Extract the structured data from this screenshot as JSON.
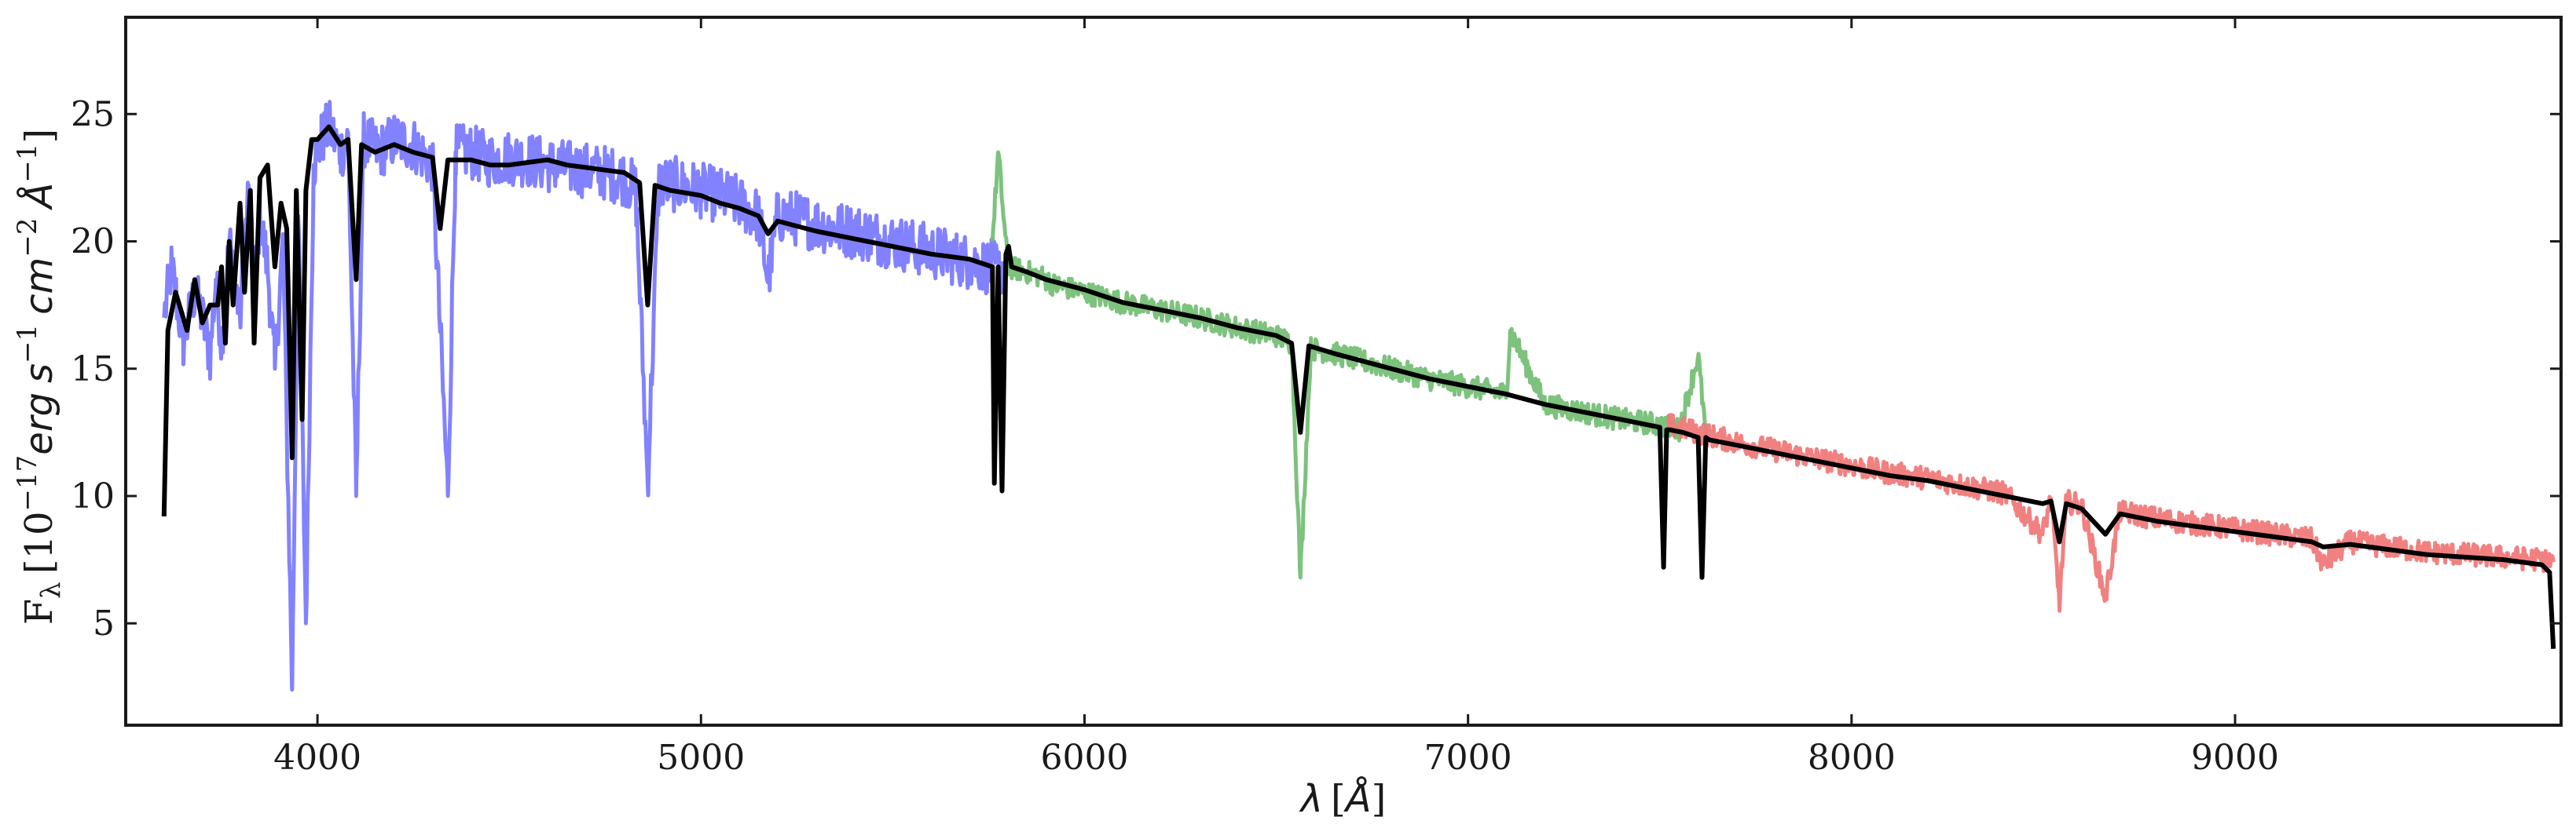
{
  "chart_data": {
    "type": "line",
    "title": "",
    "xlabel": {
      "symbol": "λ",
      "unit": "Å"
    },
    "ylabel": {
      "prefix": "F",
      "subscript": "λ",
      "scale_base": "10",
      "scale_exp": "−17",
      "unit_erg": "erg",
      "unit_s": "s",
      "unit_s_exp": "−1",
      "unit_cm": "cm",
      "unit_cm_exp": "−2",
      "unit_A": "Å",
      "unit_A_exp": "−1"
    },
    "xlim": [
      3500,
      9850
    ],
    "ylim": [
      1,
      28.8
    ],
    "xticks": [
      4000,
      5000,
      6000,
      7000,
      8000,
      9000
    ],
    "yticks": [
      5,
      10,
      15,
      20,
      25
    ],
    "grid": false,
    "legend": "none",
    "series": [
      {
        "color": "#7b7bff",
        "range": [
          3600,
          5790
        ],
        "x": [
          3600,
          3620,
          3650,
          3680,
          3700,
          3720,
          3735,
          3750,
          3770,
          3798,
          3820,
          3835,
          3850,
          3870,
          3889,
          3910,
          3934,
          3950,
          3970,
          3990,
          4010,
          4030,
          4060,
          4080,
          4101,
          4120,
          4160,
          4200,
          4250,
          4300,
          4340,
          4360,
          4400,
          4450,
          4500,
          4550,
          4600,
          4650,
          4700,
          4750,
          4800,
          4830,
          4861,
          4890,
          4950,
          5000,
          5050,
          5100,
          5150,
          5175,
          5200,
          5250,
          5300,
          5350,
          5400,
          5450,
          5500,
          5550,
          5600,
          5650,
          5700,
          5750,
          5790
        ],
        "y": [
          17.0,
          19.0,
          16.0,
          18.0,
          17.0,
          15.5,
          18.5,
          16.0,
          20.0,
          17.0,
          22.0,
          18.0,
          21.0,
          19.0,
          15.0,
          20.0,
          2.5,
          21.0,
          5.0,
          23.0,
          24.0,
          24.5,
          23.5,
          24.0,
          10.0,
          24.0,
          23.5,
          24.0,
          23.8,
          23.0,
          10.0,
          23.5,
          23.5,
          23.2,
          23.3,
          23.2,
          23.0,
          22.9,
          22.8,
          22.7,
          22.5,
          22.0,
          10.5,
          22.3,
          22.2,
          22.0,
          21.8,
          21.5,
          21.0,
          18.5,
          21.0,
          20.9,
          20.7,
          20.5,
          20.4,
          20.2,
          20.0,
          19.8,
          19.6,
          19.4,
          19.2,
          19.0,
          18.9
        ]
      },
      {
        "color": "#76bf76",
        "range": [
          5760,
          7620
        ],
        "x": [
          5760,
          5775,
          5800,
          5850,
          5890,
          5920,
          6000,
          6100,
          6200,
          6300,
          6400,
          6500,
          6540,
          6563,
          6590,
          6650,
          6700,
          6800,
          6900,
          7000,
          7100,
          7110,
          7200,
          7300,
          7400,
          7500,
          7550,
          7600,
          7620
        ],
        "y": [
          20.0,
          23.5,
          19.0,
          18.8,
          18.6,
          18.3,
          18.0,
          17.6,
          17.3,
          17.0,
          16.6,
          16.3,
          16.0,
          6.8,
          15.8,
          15.6,
          15.4,
          15.0,
          14.6,
          14.3,
          14.0,
          16.5,
          13.6,
          13.3,
          13.0,
          12.8,
          12.6,
          15.5,
          12.4
        ]
      },
      {
        "color": "#f07a7a",
        "range": [
          7520,
          9830
        ],
        "x": [
          7520,
          7600,
          7700,
          7800,
          7900,
          8000,
          8100,
          8200,
          8300,
          8400,
          8498,
          8520,
          8542,
          8560,
          8600,
          8662,
          8700,
          8800,
          8900,
          9000,
          9100,
          9200,
          9230,
          9300,
          9400,
          9500,
          9600,
          9700,
          9800,
          9830
        ],
        "y": [
          12.8,
          12.5,
          12.1,
          11.8,
          11.5,
          11.2,
          10.9,
          10.7,
          10.4,
          10.1,
          8.5,
          9.9,
          5.8,
          9.8,
          9.6,
          6.0,
          9.4,
          9.1,
          8.9,
          8.7,
          8.5,
          8.3,
          7.3,
          8.2,
          8.0,
          7.8,
          7.7,
          7.6,
          7.5,
          7.4
        ]
      },
      {
        "color": "#000000",
        "range": [
          3600,
          9830
        ],
        "x": [
          3600,
          3610,
          3630,
          3660,
          3680,
          3700,
          3720,
          3740,
          3750,
          3760,
          3770,
          3780,
          3798,
          3810,
          3825,
          3835,
          3850,
          3870,
          3889,
          3905,
          3920,
          3934,
          3945,
          3960,
          3970,
          3985,
          4000,
          4030,
          4060,
          4080,
          4101,
          4115,
          4150,
          4200,
          4250,
          4300,
          4320,
          4340,
          4360,
          4400,
          4450,
          4500,
          4550,
          4600,
          4650,
          4700,
          4750,
          4800,
          4840,
          4861,
          4880,
          4920,
          5000,
          5050,
          5100,
          5150,
          5175,
          5200,
          5250,
          5300,
          5400,
          5500,
          5600,
          5700,
          5760,
          5765,
          5775,
          5785,
          5795,
          5802,
          5810,
          5850,
          5900,
          6000,
          6100,
          6200,
          6300,
          6400,
          6500,
          6540,
          6563,
          6585,
          6650,
          6700,
          6800,
          6900,
          7000,
          7100,
          7200,
          7300,
          7400,
          7500,
          7510,
          7518,
          7525,
          7560,
          7600,
          7610,
          7620,
          7630,
          7700,
          7800,
          7900,
          8000,
          8100,
          8200,
          8300,
          8400,
          8498,
          8520,
          8542,
          8560,
          8600,
          8662,
          8700,
          8800,
          8900,
          9000,
          9100,
          9200,
          9230,
          9300,
          9400,
          9500,
          9600,
          9700,
          9800,
          9820,
          9830
        ],
        "y": [
          9.2,
          16.5,
          18.0,
          16.5,
          18.5,
          16.8,
          17.5,
          17.5,
          19.0,
          16.0,
          20.0,
          17.5,
          21.5,
          18.0,
          22.0,
          16.0,
          22.5,
          23.0,
          19.0,
          21.5,
          20.5,
          11.5,
          22.0,
          13.0,
          22.0,
          24.0,
          24.0,
          24.5,
          23.8,
          24.0,
          18.5,
          23.8,
          23.5,
          23.8,
          23.5,
          23.3,
          20.5,
          23.2,
          23.2,
          23.2,
          23.0,
          23.0,
          23.1,
          23.2,
          23.0,
          22.9,
          22.8,
          22.7,
          22.3,
          17.5,
          22.2,
          22.0,
          21.8,
          21.5,
          21.3,
          21.0,
          20.3,
          20.8,
          20.6,
          20.4,
          20.1,
          19.8,
          19.5,
          19.3,
          19.0,
          10.5,
          19.0,
          10.2,
          19.5,
          19.8,
          19.0,
          18.8,
          18.5,
          18.1,
          17.6,
          17.3,
          17.0,
          16.6,
          16.3,
          16.0,
          12.5,
          15.9,
          15.6,
          15.4,
          15.0,
          14.6,
          14.3,
          14.0,
          13.6,
          13.3,
          13.0,
          12.7,
          7.2,
          12.6,
          12.6,
          12.5,
          12.3,
          6.8,
          12.3,
          12.2,
          12.0,
          11.7,
          11.4,
          11.1,
          10.8,
          10.6,
          10.3,
          10.0,
          9.7,
          9.8,
          8.2,
          9.7,
          9.5,
          8.5,
          9.3,
          9.0,
          8.8,
          8.6,
          8.4,
          8.2,
          8.0,
          8.1,
          7.9,
          7.7,
          7.6,
          7.5,
          7.3,
          7.0,
          4.0
        ]
      }
    ]
  }
}
